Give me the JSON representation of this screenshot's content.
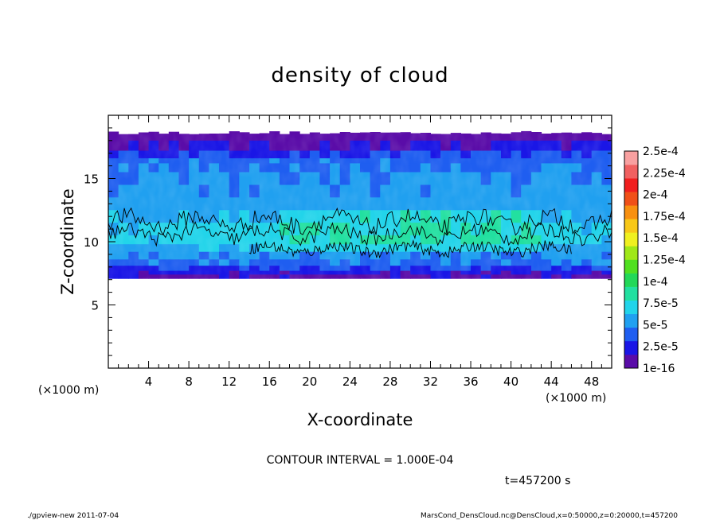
{
  "chart_data": {
    "type": "heatmap",
    "title": "density of cloud",
    "xlabel": "X-coordinate",
    "ylabel": "Z-coordinate",
    "x_unit": "(×1000 m)",
    "y_unit": "(×1000 m)",
    "xlim": [
      0,
      50
    ],
    "ylim": [
      0,
      20
    ],
    "x_ticks": [
      4,
      8,
      12,
      16,
      20,
      24,
      28,
      32,
      36,
      40,
      44,
      48
    ],
    "y_ticks": [
      5,
      10,
      15
    ],
    "layers": [
      {
        "z": 18.5,
        "level": 0
      },
      {
        "z": 18.0,
        "level": 0
      },
      {
        "z": 17.2,
        "level": 1
      },
      {
        "z": 16.6,
        "level": 2
      },
      {
        "z": 16.2,
        "level": 2.3
      },
      {
        "z": 15.5,
        "level": 2.5
      },
      {
        "z": 14.5,
        "level": 2.7
      },
      {
        "z": 13.5,
        "level": 2.9
      },
      {
        "z": 12.5,
        "level": 3.2
      },
      {
        "z": 11.5,
        "level": 3.9
      },
      {
        "z": 10.5,
        "level": 4.2
      },
      {
        "z": 9.8,
        "level": 3.8
      },
      {
        "z": 9.2,
        "level": 3.0
      },
      {
        "z": 8.6,
        "level": 2.5
      },
      {
        "z": 8.1,
        "level": 2.0
      },
      {
        "z": 7.7,
        "level": 1.0
      },
      {
        "z": 7.4,
        "level": 0.5
      },
      {
        "z": 7.1,
        "level": 0
      }
    ],
    "colorbar": {
      "labels": [
        "2.5e-4",
        "2.25e-4",
        "2e-4",
        "1.75e-4",
        "1.5e-4",
        "1.25e-4",
        "1e-4",
        "7.5e-5",
        "5e-5",
        "2.5e-5",
        "1e-16"
      ],
      "colors": [
        "#5a0ca8",
        "#1a16e6",
        "#1f5ef0",
        "#20a0f0",
        "#22d4ea",
        "#22e0a0",
        "#22d858",
        "#50e020",
        "#a0e818",
        "#f0f020",
        "#f8c818",
        "#f89010",
        "#f05018",
        "#f01e1e",
        "#f06060",
        "#f8a0a0"
      ]
    },
    "contour_level": "1e-4"
  },
  "contour_interval": "CONTOUR INTERVAL = 1.000E-04",
  "time_label": "t=457200 s",
  "footer_left": "./gpview-new  2011-07-04",
  "footer_right": "MarsCond_DensCloud.nc@DensCloud,x=0:50000,z=0:20000,t=457200"
}
